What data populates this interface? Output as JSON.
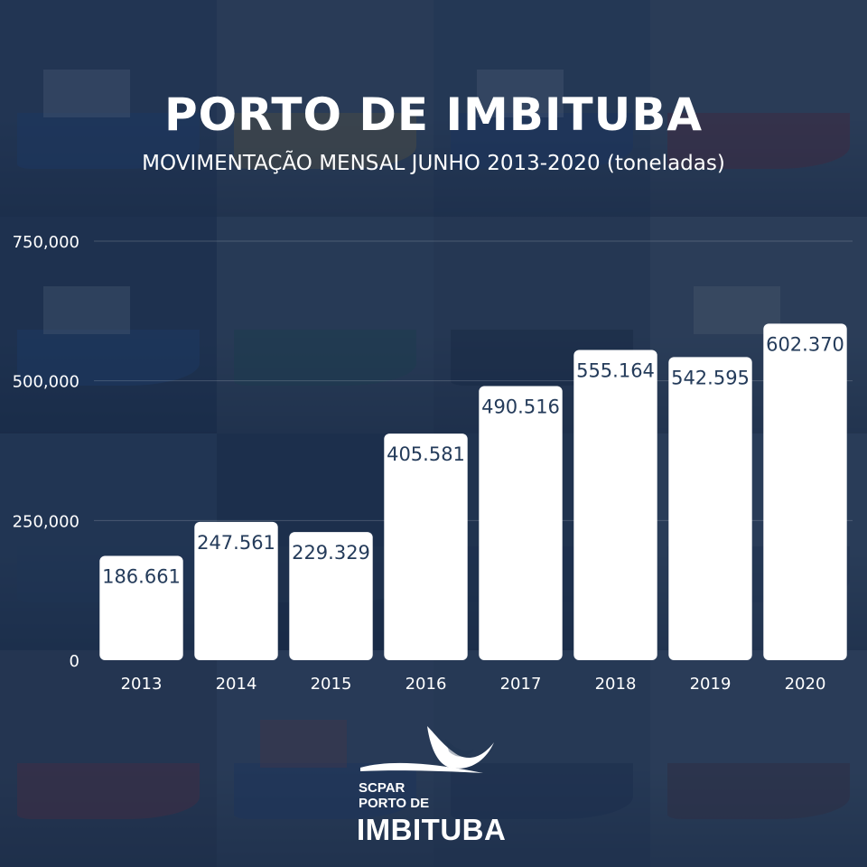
{
  "header": {
    "title": "PORTO DE IMBITUBA",
    "subtitle": "MOVIMENTAÇÃO MENSAL JUNHO 2013-2020 (toneladas)"
  },
  "chart_data": {
    "type": "bar",
    "title": "PORTO DE IMBITUBA",
    "subtitle": "MOVIMENTAÇÃO MENSAL JUNHO 2013-2020 (toneladas)",
    "categories": [
      "2013",
      "2014",
      "2015",
      "2016",
      "2017",
      "2018",
      "2019",
      "2020"
    ],
    "values": [
      186661,
      247561,
      229329,
      405581,
      490516,
      555164,
      542595,
      602370
    ],
    "data_labels": [
      "186.661",
      "247.561",
      "229.329",
      "405.581",
      "490.516",
      "555.164",
      "542.595",
      "602.370"
    ],
    "yticks": [
      0,
      250000,
      500000,
      750000
    ],
    "ytick_labels": [
      "0",
      "250,000",
      "500,000",
      "750,000"
    ],
    "ylim": [
      0,
      750000
    ],
    "grid": true,
    "legend": "none",
    "bar_color": "#ffffff",
    "label_color": "#243b5a"
  },
  "logo": {
    "line1": "SCPAR",
    "line2": "PORTO DE",
    "line3": "IMBITUBA"
  },
  "colors": {
    "background": "#1f3350",
    "text": "#ffffff"
  }
}
